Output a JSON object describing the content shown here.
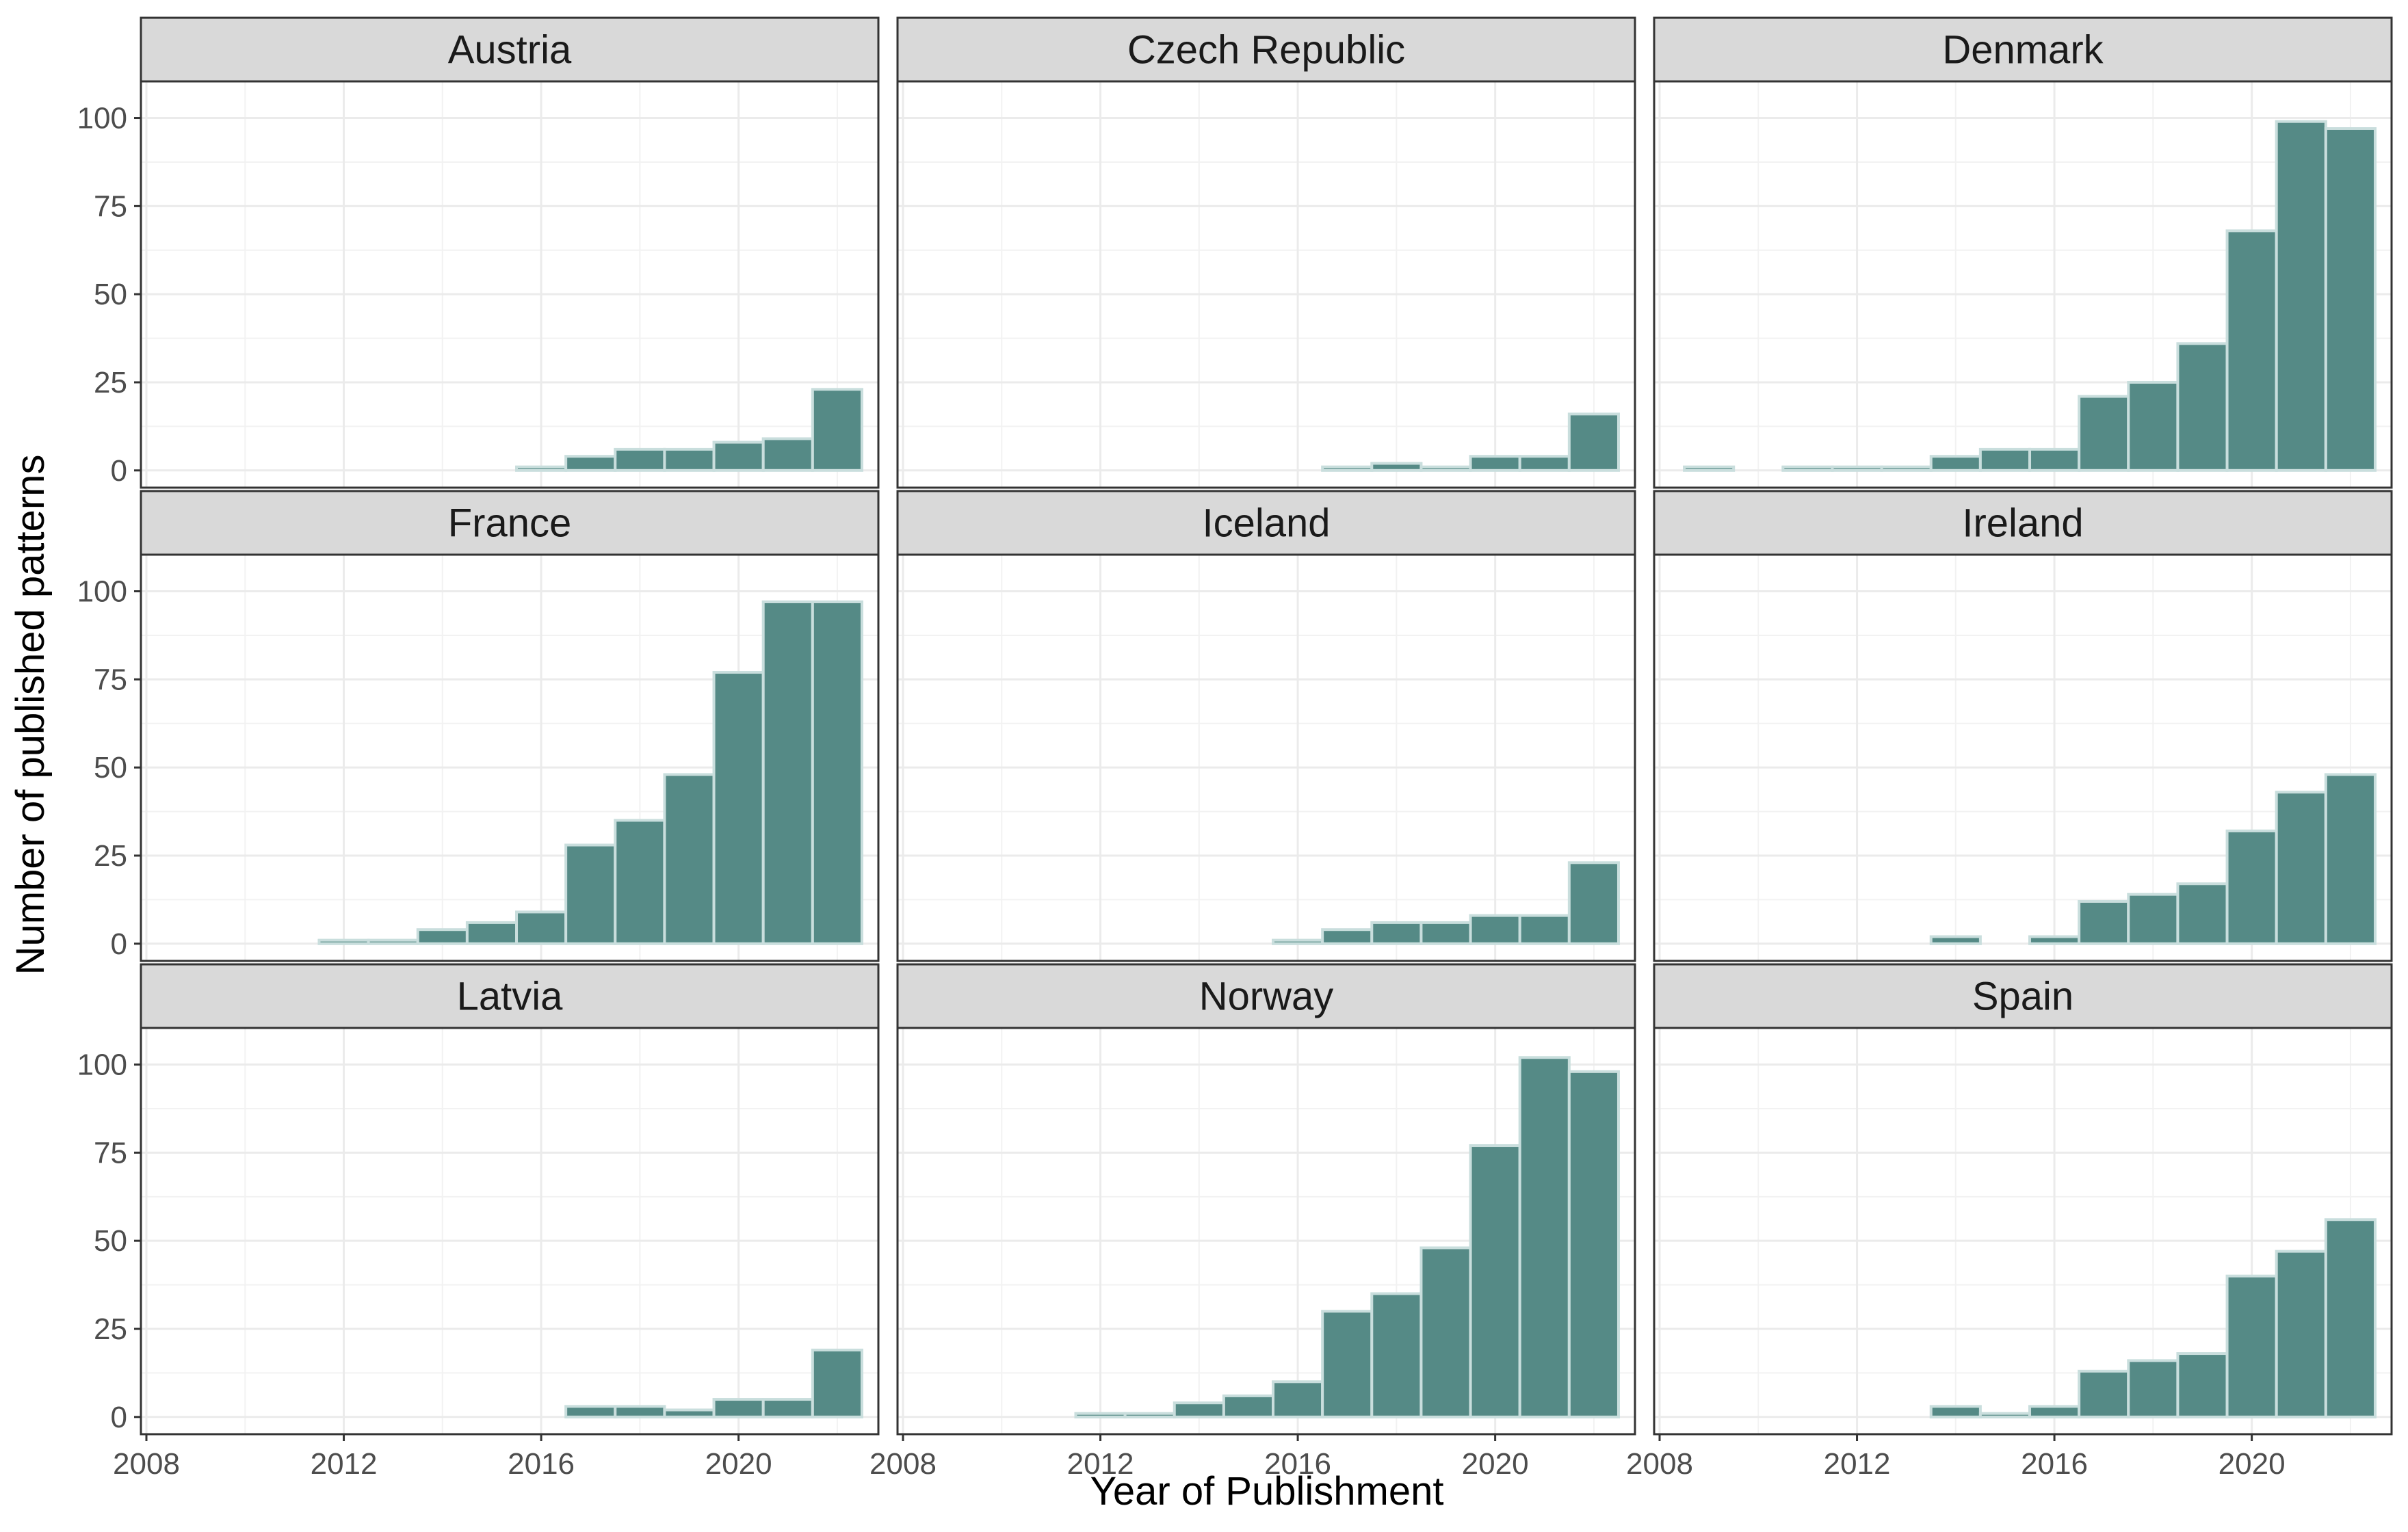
{
  "chart_data": {
    "type": "bar",
    "facet": "wrap",
    "xlabel": "Year of Publishment",
    "ylabel": "Number of published patterns",
    "xlim": [
      2008,
      2022.75
    ],
    "ylim": [
      0,
      110
    ],
    "x_ticks": [
      2008,
      2012,
      2016,
      2020
    ],
    "y_ticks": [
      0,
      25,
      50,
      75,
      100
    ],
    "grid": true,
    "colors": {
      "bar_fill": "#558a86",
      "bar_outline": "#c9dedd",
      "strip_fill": "#d9d9d9"
    },
    "panels": [
      {
        "name": "Austria",
        "years": [
          2016,
          2017,
          2018,
          2019,
          2020,
          2021,
          2022
        ],
        "values": [
          1,
          4,
          6,
          6,
          8,
          9,
          23
        ]
      },
      {
        "name": "Czech Republic",
        "years": [
          2017,
          2018,
          2019,
          2020,
          2021,
          2022
        ],
        "values": [
          1,
          2,
          1,
          4,
          4,
          16
        ]
      },
      {
        "name": "Denmark",
        "years": [
          2009,
          2011,
          2012,
          2013,
          2014,
          2015,
          2016,
          2017,
          2018,
          2019,
          2020,
          2021,
          2022
        ],
        "values": [
          1,
          1,
          1,
          1,
          4,
          6,
          6,
          21,
          25,
          36,
          68,
          99,
          97
        ]
      },
      {
        "name": "France",
        "years": [
          2012,
          2013,
          2014,
          2015,
          2016,
          2017,
          2018,
          2019,
          2020,
          2021,
          2022
        ],
        "values": [
          1,
          1,
          4,
          6,
          9,
          28,
          35,
          48,
          77,
          97,
          97
        ]
      },
      {
        "name": "Iceland",
        "years": [
          2016,
          2017,
          2018,
          2019,
          2020,
          2021,
          2022
        ],
        "values": [
          1,
          4,
          6,
          6,
          8,
          8,
          23
        ]
      },
      {
        "name": "Ireland",
        "years": [
          2014,
          2016,
          2017,
          2018,
          2019,
          2020,
          2021,
          2022
        ],
        "values": [
          2,
          2,
          12,
          14,
          17,
          32,
          43,
          48
        ]
      },
      {
        "name": "Latvia",
        "years": [
          2017,
          2018,
          2019,
          2020,
          2021,
          2022
        ],
        "values": [
          3,
          3,
          2,
          5,
          5,
          19
        ]
      },
      {
        "name": "Norway",
        "years": [
          2012,
          2013,
          2014,
          2015,
          2016,
          2017,
          2018,
          2019,
          2020,
          2021,
          2022
        ],
        "values": [
          1,
          1,
          4,
          6,
          10,
          30,
          35,
          48,
          77,
          102,
          98
        ]
      },
      {
        "name": "Spain",
        "years": [
          2014,
          2015,
          2016,
          2017,
          2018,
          2019,
          2020,
          2021,
          2022
        ],
        "values": [
          3,
          1,
          3,
          13,
          16,
          18,
          40,
          47,
          56
        ]
      }
    ]
  }
}
